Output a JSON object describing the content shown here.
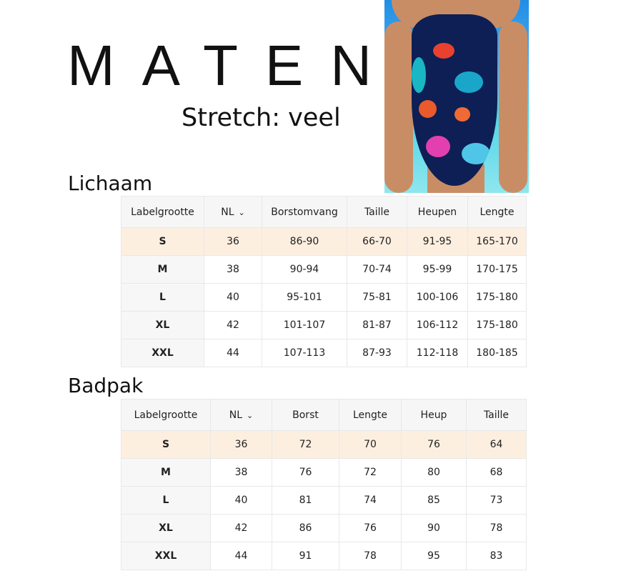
{
  "title": "MATEN",
  "stretch": "Stretch: veel",
  "lichaam": {
    "heading": "Lichaam",
    "headers": [
      "Labelgrootte",
      "NL",
      "Borstomvang",
      "Taille",
      "Heupen",
      "Lengte"
    ],
    "rows": [
      [
        "S",
        "36",
        "86-90",
        "66-70",
        "91-95",
        "165-170"
      ],
      [
        "M",
        "38",
        "90-94",
        "70-74",
        "95-99",
        "170-175"
      ],
      [
        "L",
        "40",
        "95-101",
        "75-81",
        "100-106",
        "175-180"
      ],
      [
        "XL",
        "42",
        "101-107",
        "81-87",
        "106-112",
        "175-180"
      ],
      [
        "XXL",
        "44",
        "107-113",
        "87-93",
        "112-118",
        "180-185"
      ]
    ]
  },
  "badpak": {
    "heading": "Badpak",
    "headers": [
      "Labelgrootte",
      "NL",
      "Borst",
      "Lengte",
      "Heup",
      "Taille"
    ],
    "rows": [
      [
        "S",
        "36",
        "72",
        "70",
        "76",
        "64"
      ],
      [
        "M",
        "38",
        "76",
        "72",
        "80",
        "68"
      ],
      [
        "L",
        "40",
        "81",
        "74",
        "85",
        "73"
      ],
      [
        "XL",
        "42",
        "86",
        "76",
        "90",
        "78"
      ],
      [
        "XXL",
        "44",
        "91",
        "78",
        "95",
        "83"
      ]
    ]
  },
  "highlight_color": "#fdefe0",
  "icons": {
    "dropdown": "chevron-down-icon"
  }
}
